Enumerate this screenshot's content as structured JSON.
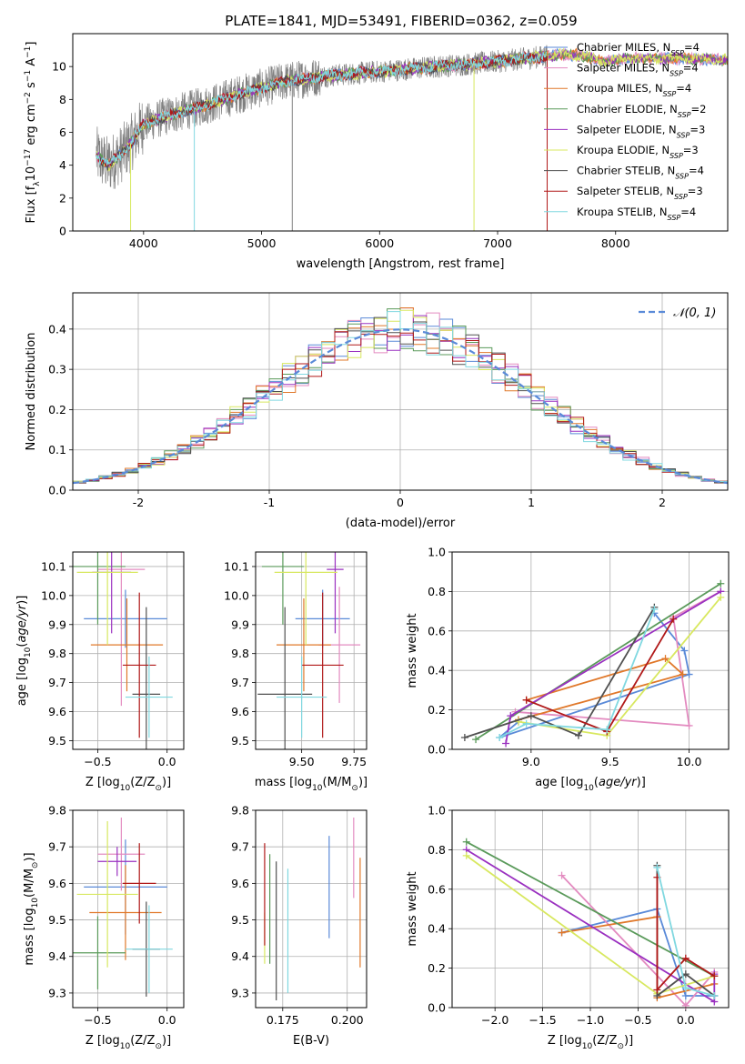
{
  "figure_title": "PLATE=1841, MJD=53491, FIBERID=0362, z=0.059",
  "models": [
    {
      "name_main": "Chabrier MILES, N",
      "name_sub": "SSP",
      "name_end": "=4",
      "color": "#5a8ad8"
    },
    {
      "name_main": "Salpeter MILES, N",
      "name_sub": "SSP",
      "name_end": "=4",
      "color": "#e38bc0"
    },
    {
      "name_main": "Kroupa MILES, N",
      "name_sub": "SSP",
      "name_end": "=4",
      "color": "#e0782a"
    },
    {
      "name_main": "Chabrier ELODIE, N",
      "name_sub": "SSP",
      "name_end": "=2",
      "color": "#5a9a5a"
    },
    {
      "name_main": "Salpeter ELODIE, N",
      "name_sub": "SSP",
      "name_end": "=3",
      "color": "#9a30c0"
    },
    {
      "name_main": "Kroupa ELODIE, N",
      "name_sub": "SSP",
      "name_end": "=3",
      "color": "#d8e860"
    },
    {
      "name_main": "Chabrier STELIB, N",
      "name_sub": "SSP",
      "name_end": "=4",
      "color": "#505050"
    },
    {
      "name_main": "Salpeter STELIB, N",
      "name_sub": "SSP",
      "name_end": "=3",
      "color": "#b01818"
    },
    {
      "name_main": "Kroupa STELIB, N",
      "name_sub": "SSP",
      "name_end": "=4",
      "color": "#80d8e0"
    }
  ],
  "chart_data": [
    {
      "id": "spectrum",
      "type": "line",
      "xlabel": "wavelength [Angstrom, rest frame]",
      "ylabel_parts": [
        "Flux [f",
        "λ",
        "10",
        "−17",
        " erg cm",
        "−2",
        " s",
        "−1",
        " A",
        "−1",
        "]"
      ],
      "xlim": [
        3400,
        8950
      ],
      "ylim": [
        0,
        12
      ],
      "xticks": [
        4000,
        5000,
        6000,
        7000,
        8000
      ],
      "yticks": [
        0,
        2,
        4,
        6,
        8,
        10
      ],
      "legend": "right",
      "observed_color": "#808080",
      "continuum_knots": [
        [
          3600,
          4.6
        ],
        [
          3700,
          4.0
        ],
        [
          3800,
          4.6
        ],
        [
          3900,
          5.4
        ],
        [
          4000,
          6.5
        ],
        [
          4200,
          7.0
        ],
        [
          4400,
          7.4
        ],
        [
          4600,
          7.8
        ],
        [
          4800,
          8.3
        ],
        [
          5000,
          8.7
        ],
        [
          5200,
          9.1
        ],
        [
          5500,
          9.4
        ],
        [
          6000,
          9.7
        ],
        [
          6500,
          10.0
        ],
        [
          7000,
          10.3
        ],
        [
          7500,
          10.7
        ],
        [
          7700,
          10.7
        ],
        [
          7900,
          10.3
        ],
        [
          8100,
          10.5
        ],
        [
          8500,
          10.5
        ],
        [
          8950,
          10.4
        ]
      ],
      "spectrum_end_observed": 7420,
      "dropouts": [
        {
          "x": 4430,
          "model": 8
        },
        {
          "x": 6800,
          "model": 5
        },
        {
          "x": 7420,
          "model": 7
        },
        {
          "x": 5260,
          "model": -1
        },
        {
          "x": 3890,
          "model": 5
        }
      ]
    },
    {
      "id": "residual-hist",
      "type": "histogram",
      "xlabel": "(data-model)/error",
      "ylabel": "Normed distribution",
      "xlim": [
        -2.5,
        2.5
      ],
      "ylim": [
        0,
        0.49
      ],
      "xticks": [
        -2,
        -1,
        0,
        1,
        2
      ],
      "yticks": [
        0.0,
        0.1,
        0.2,
        0.3,
        0.4
      ],
      "bin_width": 0.1,
      "grid": true,
      "normal_label": "𝒩(0, 1)",
      "normal_color": "#5a8ad8",
      "legend": "top-right"
    },
    {
      "id": "age-vs-Z",
      "type": "scatter",
      "xlabel_parts": [
        "Z [log",
        "10",
        "(Z/Z",
        "⊙",
        ")]"
      ],
      "ylabel_parts": [
        "age  [log",
        "10",
        "(",
        "age/yr",
        ")]"
      ],
      "xlim": [
        -0.68,
        0.12
      ],
      "ylim": [
        9.47,
        10.15
      ],
      "xticks": [
        -0.5,
        0.0
      ],
      "xticklabels": [
        "−0.5",
        "0.0"
      ],
      "yticks": [
        9.5,
        9.6,
        9.7,
        9.8,
        9.9,
        10.0,
        10.1
      ],
      "grid": true,
      "points": [
        {
          "model": 0,
          "x": -0.3,
          "y": 9.92,
          "xerr": 0.3,
          "yerr": 0.1
        },
        {
          "model": 1,
          "x": -0.33,
          "y": 10.09,
          "xerr": 0.17,
          "yerr": 0.47
        },
        {
          "model": 2,
          "x": -0.29,
          "y": 9.83,
          "xerr": 0.26,
          "yerr": 0.16
        },
        {
          "model": 3,
          "x": -0.5,
          "y": 10.1,
          "xerr": 0.2,
          "yerr": 0.2
        },
        {
          "model": 4,
          "x": -0.4,
          "y": 10.08,
          "xerr": 0.14,
          "yerr": 0.21
        },
        {
          "model": 5,
          "x": -0.43,
          "y": 10.08,
          "xerr": 0.22,
          "yerr": 0.25
        },
        {
          "model": 6,
          "x": -0.15,
          "y": 9.66,
          "xerr": 0.1,
          "yerr": 0.3
        },
        {
          "model": 7,
          "x": -0.2,
          "y": 9.76,
          "xerr": 0.12,
          "yerr": 0.25
        },
        {
          "model": 8,
          "x": -0.13,
          "y": 9.65,
          "xerr": 0.17,
          "yerr": 0.14
        }
      ]
    },
    {
      "id": "age-vs-mass",
      "type": "scatter",
      "xlabel_parts": [
        "mass [log",
        "10",
        "(M/M",
        "⊙",
        ")]"
      ],
      "xlim": [
        9.28,
        9.81
      ],
      "ylim": [
        9.47,
        10.15
      ],
      "xticks": [
        9.5,
        9.75
      ],
      "xticklabels": [
        "9.50",
        "9.75"
      ],
      "yticks": [
        9.5,
        9.6,
        9.7,
        9.8,
        9.9,
        10.0,
        10.1
      ],
      "grid": true,
      "points": [
        {
          "model": 0,
          "x": 9.6,
          "y": 9.92,
          "xerr": 0.13,
          "yerr": 0.1
        },
        {
          "model": 1,
          "x": 9.68,
          "y": 9.83,
          "xerr": 0.1,
          "yerr": 0.2
        },
        {
          "model": 2,
          "x": 9.51,
          "y": 9.83,
          "xerr": 0.13,
          "yerr": 0.16
        },
        {
          "model": 3,
          "x": 9.41,
          "y": 10.1,
          "xerr": 0.1,
          "yerr": 0.2
        },
        {
          "model": 4,
          "x": 9.66,
          "y": 10.09,
          "xerr": 0.04,
          "yerr": 0.22
        },
        {
          "model": 5,
          "x": 9.52,
          "y": 10.08,
          "xerr": 0.15,
          "yerr": 0.25
        },
        {
          "model": 6,
          "x": 9.42,
          "y": 9.66,
          "xerr": 0.13,
          "yerr": 0.3
        },
        {
          "model": 7,
          "x": 9.6,
          "y": 9.76,
          "xerr": 0.1,
          "yerr": 0.25
        },
        {
          "model": 8,
          "x": 9.5,
          "y": 9.65,
          "xerr": 0.12,
          "yerr": 0.14
        }
      ]
    },
    {
      "id": "weight-vs-age",
      "type": "line",
      "xlabel_parts": [
        "age  [log",
        "10",
        "(",
        "age/yr",
        ")]"
      ],
      "ylabel": "mass weight",
      "xlim": [
        8.5,
        10.25
      ],
      "ylim": [
        0,
        1
      ],
      "xticks": [
        9.0,
        9.5,
        10.0
      ],
      "xticklabels": [
        "9.0",
        "9.5",
        "10.0"
      ],
      "yticks": [
        0.0,
        0.2,
        0.4,
        0.6,
        0.8,
        1.0
      ],
      "grid": true,
      "series": [
        {
          "model": 0,
          "points": [
            [
              8.92,
              0.14
            ],
            [
              8.8,
              0.06
            ],
            [
              10.0,
              0.38
            ],
            [
              9.97,
              0.5
            ],
            [
              9.78,
              0.69
            ]
          ]
        },
        {
          "model": 1,
          "points": [
            [
              8.9,
              0.19
            ],
            [
              10.0,
              0.12
            ],
            [
              9.9,
              0.67
            ],
            [
              10.2,
              0.8
            ]
          ]
        },
        {
          "model": 2,
          "points": [
            [
              8.92,
              0.15
            ],
            [
              9.96,
              0.38
            ],
            [
              9.85,
              0.46
            ],
            [
              8.97,
              0.25
            ]
          ]
        },
        {
          "model": 3,
          "points": [
            [
              8.65,
              0.05
            ],
            [
              10.2,
              0.84
            ]
          ]
        },
        {
          "model": 4,
          "points": [
            [
              8.84,
              0.03
            ],
            [
              8.87,
              0.17
            ],
            [
              10.2,
              0.8
            ]
          ]
        },
        {
          "model": 5,
          "points": [
            [
              8.92,
              0.14
            ],
            [
              9.48,
              0.07
            ],
            [
              10.2,
              0.77
            ]
          ]
        },
        {
          "model": 6,
          "points": [
            [
              8.58,
              0.06
            ],
            [
              9.0,
              0.17
            ],
            [
              9.3,
              0.07
            ],
            [
              9.78,
              0.72
            ]
          ]
        },
        {
          "model": 7,
          "points": [
            [
              8.97,
              0.25
            ],
            [
              9.48,
              0.09
            ],
            [
              9.9,
              0.66
            ]
          ]
        },
        {
          "model": 8,
          "points": [
            [
              8.8,
              0.06
            ],
            [
              8.97,
              0.13
            ],
            [
              9.48,
              0.1
            ],
            [
              9.78,
              0.71
            ]
          ]
        }
      ]
    },
    {
      "id": "mass-vs-Z",
      "type": "scatter",
      "xlabel_parts": [
        "Z [log",
        "10",
        "(Z/Z",
        "⊙",
        ")]"
      ],
      "ylabel_parts": [
        "mass [log",
        "10",
        "(M/M",
        "⊙",
        ")]"
      ],
      "xlim": [
        -0.68,
        0.12
      ],
      "ylim": [
        9.26,
        9.8
      ],
      "xticks": [
        -0.5,
        0.0
      ],
      "xticklabels": [
        "−0.5",
        "0.0"
      ],
      "yticks": [
        9.3,
        9.4,
        9.5,
        9.6,
        9.7,
        9.8
      ],
      "grid": true,
      "points": [
        {
          "model": 0,
          "x": -0.3,
          "y": 9.59,
          "xerr": 0.3,
          "yerr": 0.13
        },
        {
          "model": 1,
          "x": -0.33,
          "y": 9.68,
          "xerr": 0.17,
          "yerr": 0.1
        },
        {
          "model": 2,
          "x": -0.3,
          "y": 9.52,
          "xerr": 0.26,
          "yerr": 0.13
        },
        {
          "model": 3,
          "x": -0.5,
          "y": 9.41,
          "xerr": 0.2,
          "yerr": 0.1
        },
        {
          "model": 4,
          "x": -0.36,
          "y": 9.66,
          "xerr": 0.14,
          "yerr": 0.04
        },
        {
          "model": 5,
          "x": -0.43,
          "y": 9.57,
          "xerr": 0.22,
          "yerr": 0.2
        },
        {
          "model": 6,
          "x": -0.15,
          "y": 9.42,
          "xerr": 0.1,
          "yerr": 0.13
        },
        {
          "model": 7,
          "x": -0.2,
          "y": 9.6,
          "xerr": 0.12,
          "yerr": 0.11
        },
        {
          "model": 8,
          "x": -0.13,
          "y": 9.42,
          "xerr": 0.17,
          "yerr": 0.12
        }
      ]
    },
    {
      "id": "mass-vs-ebv",
      "type": "scatter",
      "xlabel": "E(B-V)",
      "xlim": [
        0.1645,
        0.2075
      ],
      "ylim": [
        9.26,
        9.8
      ],
      "xticks": [
        0.175,
        0.2
      ],
      "xticklabels": [
        "0.175",
        "0.200"
      ],
      "yticks": [
        9.3,
        9.4,
        9.5,
        9.6,
        9.7,
        9.8
      ],
      "grid": true,
      "points": [
        {
          "model": 0,
          "x": 0.193,
          "y": 9.59,
          "yerr": 0.14
        },
        {
          "model": 1,
          "x": 0.2025,
          "y": 9.67,
          "yerr": 0.11
        },
        {
          "model": 2,
          "x": 0.205,
          "y": 9.52,
          "yerr": 0.15
        },
        {
          "model": 3,
          "x": 0.17,
          "y": 9.53,
          "yerr": 0.15
        },
        {
          "model": 5,
          "x": 0.168,
          "y": 9.45,
          "yerr": 0.07
        },
        {
          "model": 6,
          "x": 0.1725,
          "y": 9.47,
          "yerr": 0.19
        },
        {
          "model": 7,
          "x": 0.168,
          "y": 9.57,
          "yerr": 0.14
        },
        {
          "model": 8,
          "x": 0.177,
          "y": 9.47,
          "yerr": 0.17
        }
      ]
    },
    {
      "id": "weight-vs-Z",
      "type": "line",
      "xlabel_parts": [
        "Z [log",
        "10",
        "(Z/Z",
        "⊙",
        ")]"
      ],
      "ylabel": "mass weight",
      "xlim": [
        -2.45,
        0.45
      ],
      "ylim": [
        0,
        1
      ],
      "xticks": [
        -2.0,
        -1.5,
        -1.0,
        -0.5,
        0.0
      ],
      "xticklabels": [
        "−2.0",
        "−1.5",
        "−1.0",
        "−0.5",
        "0.0"
      ],
      "yticks": [
        0.0,
        0.2,
        0.4,
        0.6,
        0.8,
        1.0
      ],
      "grid": true,
      "series": [
        {
          "model": 0,
          "points": [
            [
              -1.3,
              0.38
            ],
            [
              -0.3,
              0.5
            ],
            [
              0.0,
              0.06
            ],
            [
              0.3,
              0.06
            ]
          ]
        },
        {
          "model": 1,
          "points": [
            [
              -1.3,
              0.67
            ],
            [
              0.0,
              0.01
            ],
            [
              0.3,
              0.18
            ]
          ]
        },
        {
          "model": 2,
          "points": [
            [
              -1.3,
              0.38
            ],
            [
              -0.3,
              0.46
            ],
            [
              -0.3,
              0.05
            ],
            [
              0.3,
              0.12
            ]
          ]
        },
        {
          "model": 3,
          "points": [
            [
              -2.3,
              0.84
            ],
            [
              0.3,
              0.16
            ]
          ]
        },
        {
          "model": 4,
          "points": [
            [
              -2.3,
              0.8
            ],
            [
              0.3,
              0.03
            ],
            [
              0.3,
              0.17
            ]
          ]
        },
        {
          "model": 5,
          "points": [
            [
              -2.3,
              0.77
            ],
            [
              -0.3,
              0.07
            ],
            [
              0.3,
              0.16
            ]
          ]
        },
        {
          "model": 6,
          "points": [
            [
              -0.3,
              0.72
            ],
            [
              -0.3,
              0.06
            ],
            [
              0.0,
              0.17
            ],
            [
              0.3,
              0.06
            ]
          ]
        },
        {
          "model": 7,
          "points": [
            [
              -0.3,
              0.66
            ],
            [
              -0.3,
              0.09
            ],
            [
              0.0,
              0.25
            ],
            [
              0.3,
              0.16
            ]
          ]
        },
        {
          "model": 8,
          "points": [
            [
              -0.3,
              0.71
            ],
            [
              0.0,
              0.1
            ],
            [
              0.3,
              0.06
            ]
          ]
        }
      ]
    }
  ]
}
